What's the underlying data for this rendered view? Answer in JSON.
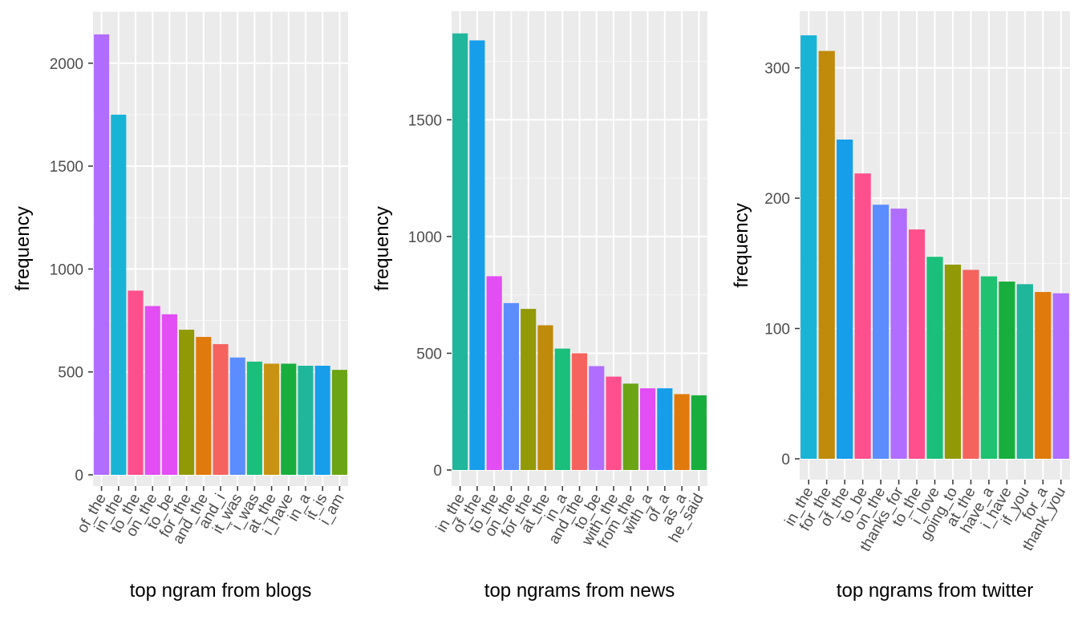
{
  "chart_data": [
    {
      "type": "bar",
      "title": "",
      "xlabel": "top ngram from blogs",
      "ylabel": "frequency",
      "ylim": [
        0,
        2200
      ],
      "yticks": [
        0,
        500,
        1000,
        1500,
        2000
      ],
      "grid": true,
      "legend": "none",
      "categories": [
        "of_the",
        "in_the",
        "to_the",
        "on_the",
        "to_be",
        "for_the",
        "and_the",
        "and_i",
        "it_was",
        "i_was",
        "at_the",
        "i_have",
        "in_a",
        "it_is",
        "i_am"
      ],
      "values": [
        2140,
        1750,
        895,
        820,
        780,
        705,
        670,
        635,
        570,
        550,
        540,
        540,
        530,
        530,
        510
      ],
      "colors": [
        "#B06DFF",
        "#18B4D6",
        "#FF4F8D",
        "#E24DF4",
        "#E24DF4",
        "#929907",
        "#E07A0C",
        "#F5635E",
        "#5B8DFF",
        "#19BF7A",
        "#C99212",
        "#18AE3D",
        "#1FB69C",
        "#169EEB",
        "#6BA414"
      ]
    },
    {
      "type": "bar",
      "title": "",
      "xlabel": "top ngrams from news",
      "ylabel": "frequency",
      "ylim": [
        0,
        1900
      ],
      "yticks": [
        0,
        500,
        1000,
        1500
      ],
      "grid": true,
      "legend": "none",
      "categories": [
        "in_the",
        "of_the",
        "to_the",
        "on_the",
        "for_the",
        "at_the",
        "in_a",
        "and_the",
        "to_be",
        "with_the",
        "from_the",
        "with_a",
        "of_a",
        "as_a",
        "he_said"
      ],
      "values": [
        1870,
        1840,
        830,
        715,
        690,
        620,
        520,
        500,
        445,
        400,
        370,
        350,
        350,
        325,
        320
      ],
      "colors": [
        "#1FB69C",
        "#169EEB",
        "#E24DF4",
        "#5B8DFF",
        "#929907",
        "#C08A0A",
        "#19BF7A",
        "#F5635E",
        "#B06DFF",
        "#FF4F8D",
        "#6BA414",
        "#E24DF4",
        "#169EEB",
        "#E07A0C",
        "#18AE3D"
      ]
    },
    {
      "type": "bar",
      "title": "",
      "xlabel": "top ngrams from twitter",
      "ylabel": "frequency",
      "ylim": [
        0,
        330
      ],
      "yticks": [
        0,
        100,
        200,
        300
      ],
      "grid": true,
      "legend": "none",
      "categories": [
        "in_the",
        "for_the",
        "of_the",
        "to_be",
        "on_the",
        "thanks_for",
        "to_the",
        "i_love",
        "going_to",
        "at_the",
        "have_a",
        "i_have",
        "if_you",
        "for_a",
        "thank_you"
      ],
      "values": [
        325,
        313,
        245,
        219,
        195,
        192,
        176,
        155,
        149,
        145,
        140,
        136,
        134,
        128,
        127
      ],
      "colors": [
        "#18B4D6",
        "#C08A0A",
        "#169EEB",
        "#FF4F8D",
        "#5B8DFF",
        "#B06DFF",
        "#FF4F8D",
        "#19BF7A",
        "#929907",
        "#F5635E",
        "#1EC270",
        "#18AE3D",
        "#1FB69C",
        "#E07A0C",
        "#B06DFF"
      ]
    }
  ]
}
